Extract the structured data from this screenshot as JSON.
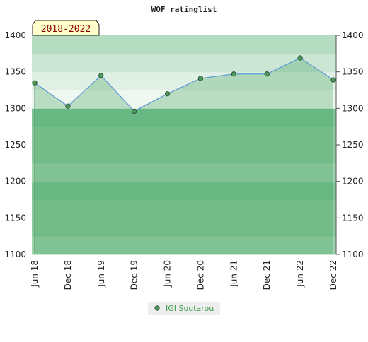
{
  "chart_data": {
    "type": "line",
    "title": "WOF ratinglist",
    "annotation": "2018-2022",
    "categories": [
      "Jun 18",
      "Dec 18",
      "Jun 19",
      "Dec 19",
      "Jun 20",
      "Dec 20",
      "Jun 21",
      "Dec 21",
      "Jun 22",
      "Dec 22"
    ],
    "series": [
      {
        "name": "IGI Soutarou",
        "color": "#4f9a5e",
        "line_color": "#5b9bd5",
        "values": [
          1335,
          1303,
          1345,
          1296,
          1320,
          1341,
          1347,
          1347,
          1369,
          1339
        ]
      }
    ],
    "ylim": [
      1100,
      1400
    ],
    "yticks": [
      1100,
      1150,
      1200,
      1250,
      1300,
      1350,
      1400
    ],
    "grid": true
  }
}
